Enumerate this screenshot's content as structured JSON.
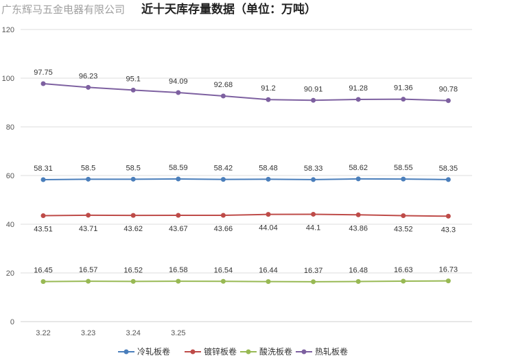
{
  "chart_data": {
    "type": "line",
    "title": "近十天库存量数据（单位：万吨）",
    "company": "广东辉马五金电器有限公司",
    "xlabel": "",
    "ylabel": "",
    "ylim": [
      0,
      120
    ],
    "yticks": [
      0,
      20,
      40,
      60,
      80,
      100,
      120
    ],
    "grid": true,
    "legend_position": "bottom",
    "x_tick_labels": [
      "3.22",
      "3.23",
      "3.24",
      "3.25",
      "",
      "",
      "",
      "",
      "",
      ""
    ],
    "series": [
      {
        "name": "冷轧板卷",
        "color": "#4a7ebb",
        "label_side": "above",
        "values": [
          58.31,
          58.5,
          58.5,
          58.59,
          58.42,
          58.48,
          58.33,
          58.62,
          58.55,
          58.35
        ]
      },
      {
        "name": "镀锌板卷",
        "color": "#be4b48",
        "label_side": "below",
        "values": [
          43.51,
          43.71,
          43.62,
          43.67,
          43.66,
          44.04,
          44.1,
          43.86,
          43.52,
          43.3
        ]
      },
      {
        "name": "酸洗板卷",
        "color": "#98b954",
        "label_side": "above",
        "values": [
          16.45,
          16.57,
          16.52,
          16.58,
          16.54,
          16.44,
          16.37,
          16.48,
          16.63,
          16.73
        ]
      },
      {
        "name": "热轧板卷",
        "color": "#7d60a0",
        "label_side": "above",
        "values": [
          97.75,
          96.23,
          95.1,
          94.09,
          92.68,
          91.2,
          90.91,
          91.28,
          91.36,
          90.78
        ]
      }
    ]
  }
}
